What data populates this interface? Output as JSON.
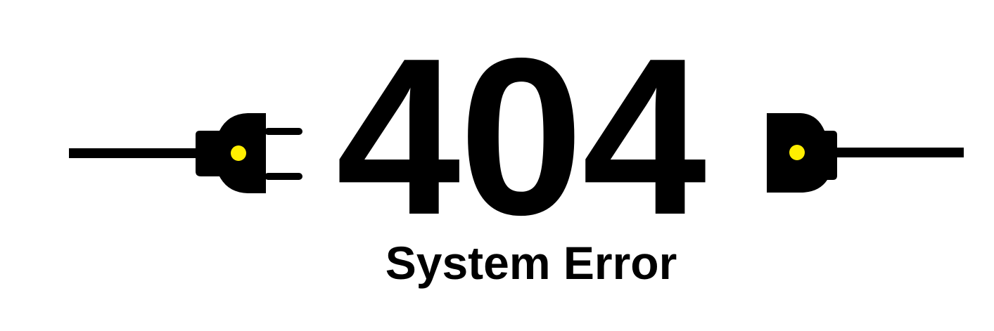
{
  "error": {
    "code": "404",
    "message": "System Error"
  },
  "illustration": {
    "left": "plug-icon",
    "right": "socket-icon",
    "cable_color": "#000000",
    "indicator_color": "#ffee00"
  }
}
